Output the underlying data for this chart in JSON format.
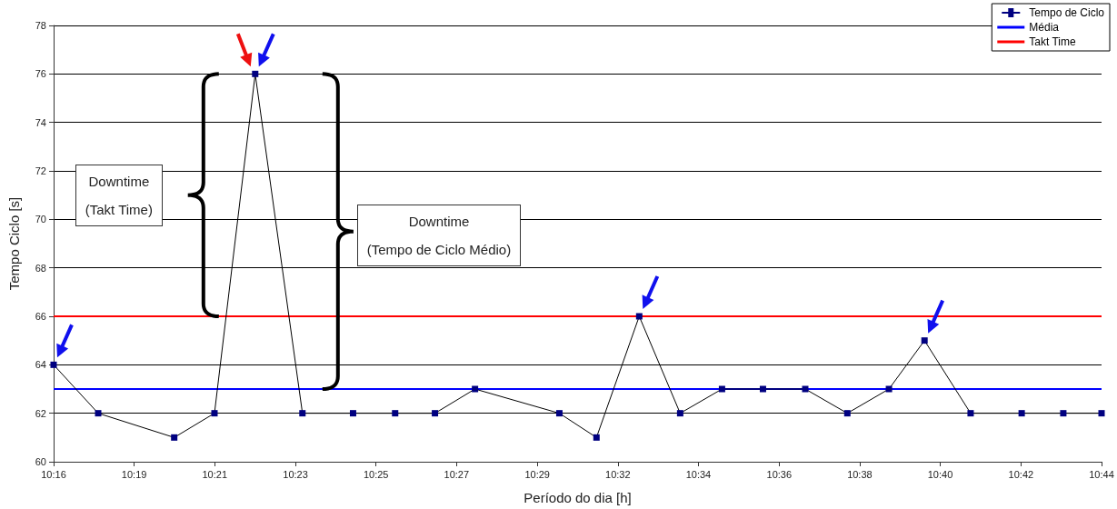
{
  "chart_data": {
    "type": "line",
    "xlabel": "Período do dia [h]",
    "ylabel": "Tempo Ciclo [s]",
    "x": [
      10.2747,
      10.2945,
      10.3283,
      10.3462,
      10.3643,
      10.3853,
      10.4078,
      10.4265,
      10.4442,
      10.462,
      10.4995,
      10.516,
      10.535,
      10.5532,
      10.5718,
      10.59,
      10.6088,
      10.6275,
      10.646,
      10.6618,
      10.6823,
      10.705,
      10.7235,
      10.7405
    ],
    "series": [
      {
        "name": "Tempo de Ciclo",
        "color": "#000080",
        "values": [
          64,
          62,
          61,
          62,
          76,
          62,
          62,
          62,
          62,
          63,
          62,
          61,
          66,
          62,
          63,
          63,
          63,
          62,
          63,
          65,
          62,
          62,
          62,
          62
        ]
      }
    ],
    "ref_lines": [
      {
        "axis": "y",
        "value": 63,
        "label": "Média",
        "color": "#0000ff"
      },
      {
        "axis": "y",
        "value": 66,
        "label": "Takt Time",
        "color": "#ff0000"
      }
    ],
    "annotations": [
      "Downtime\n(Takt Time)",
      "Downtime\n(Tempo de Ciclo Médio)"
    ],
    "xlim": [
      10.2747,
      10.7405
    ],
    "xticks": [
      {
        "value": 10.2747,
        "label": "10:16"
      },
      {
        "value": 10.3105,
        "label": "10:19"
      },
      {
        "value": 10.3463,
        "label": "10:21"
      },
      {
        "value": 10.3822,
        "label": "10:23"
      },
      {
        "value": 10.418,
        "label": "10:25"
      },
      {
        "value": 10.4538,
        "label": "10:27"
      },
      {
        "value": 10.4897,
        "label": "10:29"
      },
      {
        "value": 10.5255,
        "label": "10:32"
      },
      {
        "value": 10.5613,
        "label": "10:34"
      },
      {
        "value": 10.5972,
        "label": "10:36"
      },
      {
        "value": 10.633,
        "label": "10:38"
      },
      {
        "value": 10.6688,
        "label": "10:40"
      },
      {
        "value": 10.7047,
        "label": "10:42"
      },
      {
        "value": 10.7405,
        "label": "10:44"
      }
    ],
    "ylim": [
      60,
      78
    ],
    "yticks": [
      60,
      62,
      64,
      66,
      68,
      70,
      72,
      74,
      76,
      78
    ],
    "grid": "y",
    "legend": "top right",
    "marker": "square",
    "line_style": "solid"
  }
}
